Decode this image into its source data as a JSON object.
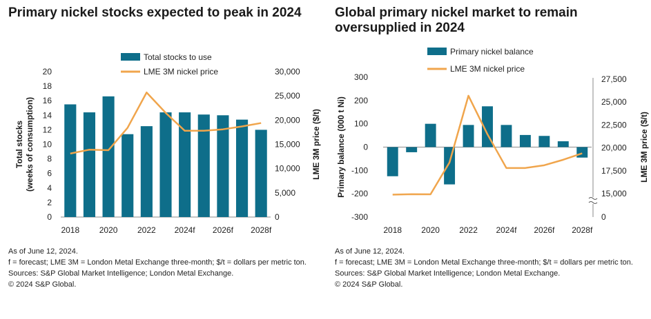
{
  "colors": {
    "bar": "#0e6e8a",
    "line": "#f0a54c",
    "axis": "#8a8a8a"
  },
  "left": {
    "title": "Primary nickel stocks expected to peak in 2024",
    "notes": [
      "As of June 12, 2024.",
      "f = forecast; LME 3M = London Metal Exchange three-month; $/t = dollars per metric ton.",
      "Sources: S&P Global Market Intelligence; London Metal Exchange.",
      "© 2024 S&P Global."
    ]
  },
  "right": {
    "title": "Global primary nickel market to remain oversupplied in 2024",
    "notes": [
      "As of June 12, 2024.",
      "f = forecast; LME 3M = London Metal Exchange three-month; $/t = dollars per metric ton.",
      "Sources: S&P Global Market Intelligence; London Metal Exchange.",
      "© 2024 S&P Global."
    ]
  },
  "chart_data": [
    {
      "type": "bar",
      "title": "Primary nickel stocks expected to peak in 2024",
      "categories": [
        "2018",
        "2019",
        "2020",
        "2021",
        "2022",
        "2023",
        "2024f",
        "2025f",
        "2026f",
        "2027f",
        "2028f"
      ],
      "x_tick_labels": [
        "2018",
        "2020",
        "2022",
        "2024f",
        "2026f",
        "2028f"
      ],
      "series": [
        {
          "name": "Total stocks to use",
          "type": "bar",
          "axis": "left",
          "values": [
            15.5,
            14.4,
            16.6,
            11.4,
            12.5,
            14.4,
            14.4,
            14.1,
            14.0,
            13.4,
            12.0
          ]
        },
        {
          "name": "LME 3M nickel price",
          "type": "line",
          "axis": "right",
          "values": [
            13100,
            13900,
            13800,
            18400,
            25700,
            21500,
            17800,
            17800,
            18100,
            18700,
            19400
          ]
        }
      ],
      "ylabel": "Total stocks\n(weeks of consumption)",
      "y2label": "LME 3M price ($/t)",
      "ylim": [
        0,
        20
      ],
      "y2lim": [
        0,
        30000
      ],
      "y_ticks": [
        "0",
        "2",
        "4",
        "6",
        "8",
        "10",
        "12",
        "14",
        "16",
        "18",
        "20"
      ],
      "y2_ticks": [
        "0",
        "5,000",
        "10,000",
        "15,000",
        "20,000",
        "25,000",
        "30,000"
      ],
      "legend": "top-center",
      "grid": false
    },
    {
      "type": "bar",
      "title": "Global primary nickel market to remain oversupplied in 2024",
      "categories": [
        "2018",
        "2019",
        "2020",
        "2021",
        "2022",
        "2023",
        "2024f",
        "2025f",
        "2026f",
        "2027f",
        "2028f"
      ],
      "x_tick_labels": [
        "2018",
        "2020",
        "2022",
        "2024f",
        "2026f",
        "2028f"
      ],
      "series": [
        {
          "name": "Primary nickel balance",
          "type": "bar",
          "axis": "left",
          "values": [
            -125,
            -22,
            100,
            -160,
            95,
            175,
            95,
            52,
            48,
            25,
            -45
          ]
        },
        {
          "name": "LME 3M nickel price",
          "type": "line",
          "axis": "right",
          "values": [
            13100,
            13900,
            13800,
            18400,
            25700,
            21500,
            17800,
            17800,
            18100,
            18700,
            19400
          ]
        }
      ],
      "ylabel": "Primary balance (000 t Ni)",
      "y2label": "LME 3M price ($/t)",
      "ylim": [
        -300,
        300
      ],
      "y2_ticks": [
        "0",
        "15,000",
        "17,500",
        "20,000",
        "22,500",
        "25,000",
        "27,500"
      ],
      "y2_breaks": true,
      "legend": "top-center",
      "grid": false
    }
  ]
}
